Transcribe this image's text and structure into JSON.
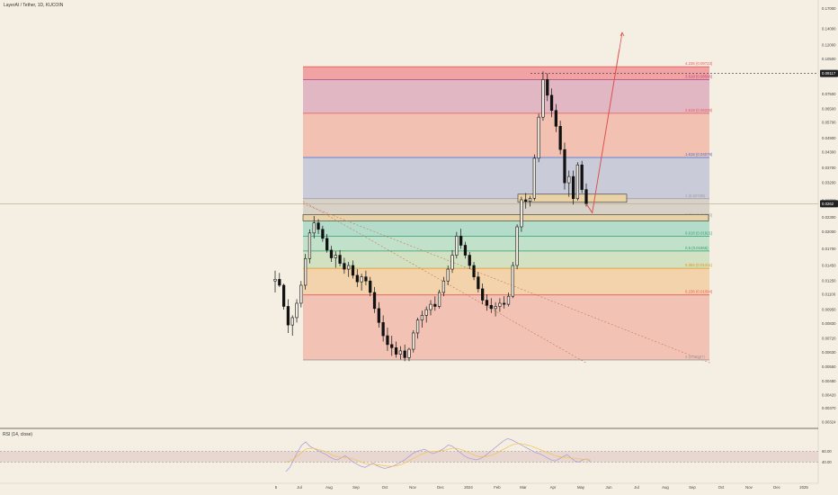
{
  "header": {
    "symbol": "LayerAI / Tether, 1D, KUCOIN",
    "currency": "USDT"
  },
  "rsi": {
    "label": "RSI (14, close)",
    "levels": [
      "60.00",
      "40.00"
    ]
  },
  "colors": {
    "background": "#f4efe2",
    "candle": "#111111",
    "current_price_tag": "#222222",
    "projection": "#d9534f",
    "rsi_line": "#b39ddb",
    "rsi_ma": "#f2c14e"
  },
  "chart_data": {
    "type": "candlestick",
    "y_scale": "log",
    "ylim": [
      0.0031,
      0.175
    ],
    "price_ticks": [
      "0.17000",
      "0.14000",
      "0.12000",
      "0.10500",
      "0.07500",
      "0.06500",
      "0.05700",
      "0.04900",
      "0.04300",
      "0.03700",
      "0.03200",
      "0.02700",
      "0.02300",
      "0.02000",
      "0.01700",
      "0.01450",
      "0.01250",
      "0.01100",
      "0.00950",
      "0.00830",
      "0.00720",
      "0.00630",
      "0.00550",
      "0.00480",
      "0.00420",
      "0.00370",
      "0.00324"
    ],
    "price_tick_values": [
      0.17,
      0.14,
      0.12,
      0.105,
      0.075,
      0.065,
      0.057,
      0.049,
      0.043,
      0.037,
      0.032,
      0.027,
      0.023,
      0.02,
      0.017,
      0.0145,
      0.0125,
      0.011,
      0.0095,
      0.0083,
      0.0072,
      0.0063,
      0.0055,
      0.0048,
      0.0042,
      0.0037,
      0.00324
    ],
    "x_labels": [
      "5",
      "Jul",
      "Aug",
      "Sep",
      "Oct",
      "Nov",
      "Dec",
      "2024",
      "Feb",
      "Mar",
      "Apr",
      "May",
      "Jun",
      "Jul",
      "Aug",
      "Sep",
      "Oct",
      "Nov",
      "Dec",
      "2025"
    ],
    "price_tags": [
      {
        "label": "0.09117",
        "value": 0.09117,
        "dotted": true
      },
      {
        "label": "0.0262",
        "value": 0.0262,
        "dotted": false
      }
    ],
    "fib_levels": [
      {
        "label": "4.236 (0.09723)",
        "value": 0.09723,
        "color": "#e8585a"
      },
      {
        "label": "3.618 (0.08596)",
        "value": 0.08596,
        "color": "#b04a8a"
      },
      {
        "label": "2.618 (0.06228)",
        "value": 0.06228,
        "color": "#e8585a"
      },
      {
        "label": "1.618 (0.04079)",
        "value": 0.04079,
        "color": "#3b6fd6"
      },
      {
        "label": "1 (0.02749)",
        "value": 0.02749,
        "color": "#9a9a9a"
      },
      {
        "label": "0.786 (0.02280)",
        "value": 0.0228,
        "color": "#9a9a9a"
      },
      {
        "label": "0.618 (0.01921)",
        "value": 0.01921,
        "color": "#2f9e6e"
      },
      {
        "label": "0.5 (0.01666)",
        "value": 0.01666,
        "color": "#2f9e6e"
      },
      {
        "label": "0.382 (0.01411)",
        "value": 0.01411,
        "color": "#e8930c"
      },
      {
        "label": "0.236 (0.01094)",
        "value": 0.01094,
        "color": "#e8585a"
      },
      {
        "label": "0 (0.00587)",
        "value": 0.00587,
        "color": "#9a9a9a"
      }
    ],
    "fib_zones": [
      {
        "from": 0.09723,
        "to": 0.08596,
        "color": "#f08a8e"
      },
      {
        "from": 0.08596,
        "to": 0.06228,
        "color": "#d9a4b8"
      },
      {
        "from": 0.06228,
        "to": 0.04079,
        "color": "#f1b1a0"
      },
      {
        "from": 0.04079,
        "to": 0.02749,
        "color": "#bcbfd6"
      },
      {
        "from": 0.02749,
        "to": 0.0228,
        "color": "#cfc7bd"
      },
      {
        "from": 0.0228,
        "to": 0.01921,
        "color": "#9fd6c2"
      },
      {
        "from": 0.01921,
        "to": 0.01666,
        "color": "#b2dcc2"
      },
      {
        "from": 0.01666,
        "to": 0.01411,
        "color": "#c6dcb5"
      },
      {
        "from": 0.01411,
        "to": 0.01094,
        "color": "#f3c998"
      },
      {
        "from": 0.01094,
        "to": 0.00587,
        "color": "#f2b4a4"
      }
    ],
    "price_path": [
      [
        2.5,
        0.0125
      ],
      [
        4,
        0.0095
      ],
      [
        5,
        0.0078
      ],
      [
        7,
        0.0098
      ],
      [
        9,
        0.0155
      ],
      [
        10,
        0.022
      ],
      [
        12,
        0.0205
      ],
      [
        15,
        0.0165
      ],
      [
        18,
        0.0145
      ],
      [
        21,
        0.0138
      ],
      [
        24,
        0.013
      ],
      [
        27,
        0.0118
      ],
      [
        30,
        0.0095
      ],
      [
        33,
        0.0075
      ],
      [
        36,
        0.0066
      ],
      [
        39,
        0.0062
      ],
      [
        40,
        0.0064
      ],
      [
        41,
        0.0059
      ],
      [
        43,
        0.0072
      ],
      [
        45,
        0.0088
      ],
      [
        47,
        0.0095
      ],
      [
        49,
        0.0102
      ],
      [
        51,
        0.0122
      ],
      [
        53,
        0.0155
      ],
      [
        54,
        0.0195
      ],
      [
        55.5,
        0.0165
      ],
      [
        57,
        0.0135
      ],
      [
        59,
        0.0105
      ],
      [
        61,
        0.0098
      ],
      [
        62,
        0.0095
      ],
      [
        63,
        0.0105
      ],
      [
        64,
        0.0115
      ],
      [
        65,
        0.0155
      ],
      [
        66,
        0.022
      ],
      [
        67,
        0.0275
      ],
      [
        68.5,
        0.0275
      ],
      [
        70,
        0.055
      ],
      [
        71,
        0.085
      ],
      [
        72,
        0.082
      ],
      [
        73.5,
        0.055
      ],
      [
        75,
        0.045
      ],
      [
        77,
        0.028
      ],
      [
        78,
        0.033
      ],
      [
        79,
        0.028
      ],
      [
        80,
        0.0262
      ]
    ],
    "candles": [
      [
        0.0125,
        0.0138,
        0.0112,
        0.0127
      ],
      [
        0.0127,
        0.0135,
        0.0118,
        0.012
      ],
      [
        0.012,
        0.0122,
        0.0095,
        0.0098
      ],
      [
        0.0098,
        0.0105,
        0.0076,
        0.0082
      ],
      [
        0.0082,
        0.009,
        0.0074,
        0.0088
      ],
      [
        0.0088,
        0.0105,
        0.0084,
        0.0101
      ],
      [
        0.0101,
        0.0125,
        0.0097,
        0.012
      ],
      [
        0.012,
        0.0162,
        0.0115,
        0.0155
      ],
      [
        0.0155,
        0.0205,
        0.0148,
        0.0198
      ],
      [
        0.0198,
        0.0233,
        0.0188,
        0.0218
      ],
      [
        0.0218,
        0.0226,
        0.0196,
        0.0205
      ],
      [
        0.0205,
        0.0212,
        0.0182,
        0.0188
      ],
      [
        0.0188,
        0.0196,
        0.0164,
        0.0168
      ],
      [
        0.0168,
        0.0175,
        0.015,
        0.0156
      ],
      [
        0.0156,
        0.0166,
        0.0142,
        0.016
      ],
      [
        0.016,
        0.0168,
        0.0144,
        0.0148
      ],
      [
        0.0148,
        0.0156,
        0.0134,
        0.014
      ],
      [
        0.014,
        0.015,
        0.013,
        0.0145
      ],
      [
        0.0145,
        0.0152,
        0.0128,
        0.0132
      ],
      [
        0.0132,
        0.014,
        0.0118,
        0.0124
      ],
      [
        0.0124,
        0.0134,
        0.0114,
        0.013
      ],
      [
        0.013,
        0.0138,
        0.012,
        0.0125
      ],
      [
        0.0125,
        0.013,
        0.0108,
        0.0112
      ],
      [
        0.0112,
        0.0118,
        0.0092,
        0.0096
      ],
      [
        0.0096,
        0.0102,
        0.008,
        0.0084
      ],
      [
        0.0084,
        0.009,
        0.007,
        0.0074
      ],
      [
        0.0074,
        0.008,
        0.0064,
        0.0068
      ],
      [
        0.0068,
        0.0074,
        0.0061,
        0.0066
      ],
      [
        0.0066,
        0.007,
        0.006,
        0.0062
      ],
      [
        0.0062,
        0.0067,
        0.0059,
        0.0064
      ],
      [
        0.0064,
        0.0068,
        0.0058,
        0.006
      ],
      [
        0.006,
        0.0066,
        0.0058,
        0.0065
      ],
      [
        0.0065,
        0.0078,
        0.0063,
        0.0076
      ],
      [
        0.0076,
        0.0088,
        0.0072,
        0.0086
      ],
      [
        0.0086,
        0.0094,
        0.008,
        0.009
      ],
      [
        0.009,
        0.0098,
        0.0084,
        0.0095
      ],
      [
        0.0095,
        0.0104,
        0.009,
        0.01
      ],
      [
        0.01,
        0.0108,
        0.0094,
        0.0098
      ],
      [
        0.0098,
        0.0115,
        0.0096,
        0.0112
      ],
      [
        0.0112,
        0.013,
        0.0108,
        0.0125
      ],
      [
        0.0125,
        0.0145,
        0.012,
        0.014
      ],
      [
        0.014,
        0.0168,
        0.0135,
        0.016
      ],
      [
        0.016,
        0.02,
        0.0155,
        0.0192
      ],
      [
        0.0192,
        0.0206,
        0.017,
        0.0176
      ],
      [
        0.0176,
        0.0182,
        0.0155,
        0.016
      ],
      [
        0.016,
        0.0165,
        0.014,
        0.0145
      ],
      [
        0.0145,
        0.015,
        0.0126,
        0.013
      ],
      [
        0.013,
        0.0136,
        0.0112,
        0.0116
      ],
      [
        0.0116,
        0.0122,
        0.01,
        0.0104
      ],
      [
        0.0104,
        0.011,
        0.0094,
        0.0099
      ],
      [
        0.0099,
        0.0106,
        0.0092,
        0.0096
      ],
      [
        0.0096,
        0.0102,
        0.0089,
        0.0098
      ],
      [
        0.0098,
        0.0106,
        0.0093,
        0.0101
      ],
      [
        0.0101,
        0.0108,
        0.0096,
        0.01
      ],
      [
        0.01,
        0.0112,
        0.0098,
        0.0108
      ],
      [
        0.0108,
        0.015,
        0.0106,
        0.0145
      ],
      [
        0.0145,
        0.0215,
        0.014,
        0.021
      ],
      [
        0.021,
        0.028,
        0.02,
        0.0272
      ],
      [
        0.0272,
        0.029,
        0.025,
        0.0268
      ],
      [
        0.0268,
        0.0282,
        0.0255,
        0.0276
      ],
      [
        0.0276,
        0.042,
        0.027,
        0.0405
      ],
      [
        0.0405,
        0.062,
        0.039,
        0.06
      ],
      [
        0.06,
        0.093,
        0.058,
        0.086
      ],
      [
        0.086,
        0.0912,
        0.07,
        0.074
      ],
      [
        0.074,
        0.079,
        0.06,
        0.064
      ],
      [
        0.064,
        0.068,
        0.052,
        0.055
      ],
      [
        0.055,
        0.058,
        0.042,
        0.044
      ],
      [
        0.044,
        0.047,
        0.03,
        0.032
      ],
      [
        0.032,
        0.036,
        0.028,
        0.034
      ],
      [
        0.034,
        0.036,
        0.026,
        0.0275
      ],
      [
        0.0275,
        0.039,
        0.027,
        0.038
      ],
      [
        0.038,
        0.0395,
        0.029,
        0.03
      ],
      [
        0.03,
        0.0318,
        0.0255,
        0.0262
      ]
    ],
    "projection_path": [
      [
        80,
        0.0262
      ],
      [
        82,
        0.024
      ],
      [
        92,
        0.135
      ]
    ],
    "projection_path_2": [
      [
        80,
        0.0262
      ],
      [
        82,
        0.024
      ],
      [
        91,
        0.115
      ]
    ],
    "rsi_values": [
      22,
      30,
      45,
      60,
      72,
      78,
      70,
      66,
      62,
      58,
      55,
      50,
      46,
      44,
      48,
      52,
      46,
      40,
      36,
      32,
      30,
      34,
      38,
      33,
      30,
      28,
      30,
      32,
      36,
      40,
      44,
      50,
      56,
      60,
      62,
      64,
      60,
      56,
      58,
      62,
      66,
      72,
      70,
      64,
      58,
      52,
      48,
      46,
      44,
      46,
      50,
      56,
      62,
      68,
      74,
      80,
      84,
      82,
      78,
      74,
      70,
      66,
      62,
      58,
      56,
      52,
      48,
      44,
      42,
      46,
      50,
      54,
      48,
      42,
      40,
      44,
      46,
      40
    ],
    "rsi_ma_values": [
      40,
      42,
      46,
      52,
      58,
      64,
      66,
      66,
      64,
      62,
      60,
      56,
      52,
      50,
      49,
      49,
      48,
      46,
      43,
      40,
      37,
      36,
      36,
      35,
      34,
      33,
      32,
      32,
      33,
      35,
      38,
      42,
      46,
      50,
      54,
      57,
      59,
      60,
      60,
      61,
      62,
      64,
      66,
      66,
      64,
      62,
      58,
      55,
      52,
      50,
      50,
      51,
      53,
      56,
      60,
      64,
      68,
      72,
      74,
      75,
      74,
      72,
      70,
      67,
      64,
      61,
      58,
      55,
      52,
      50,
      49,
      49,
      48,
      47,
      46,
      45,
      45,
      44
    ],
    "rsi_levels": [
      60,
      40
    ]
  }
}
